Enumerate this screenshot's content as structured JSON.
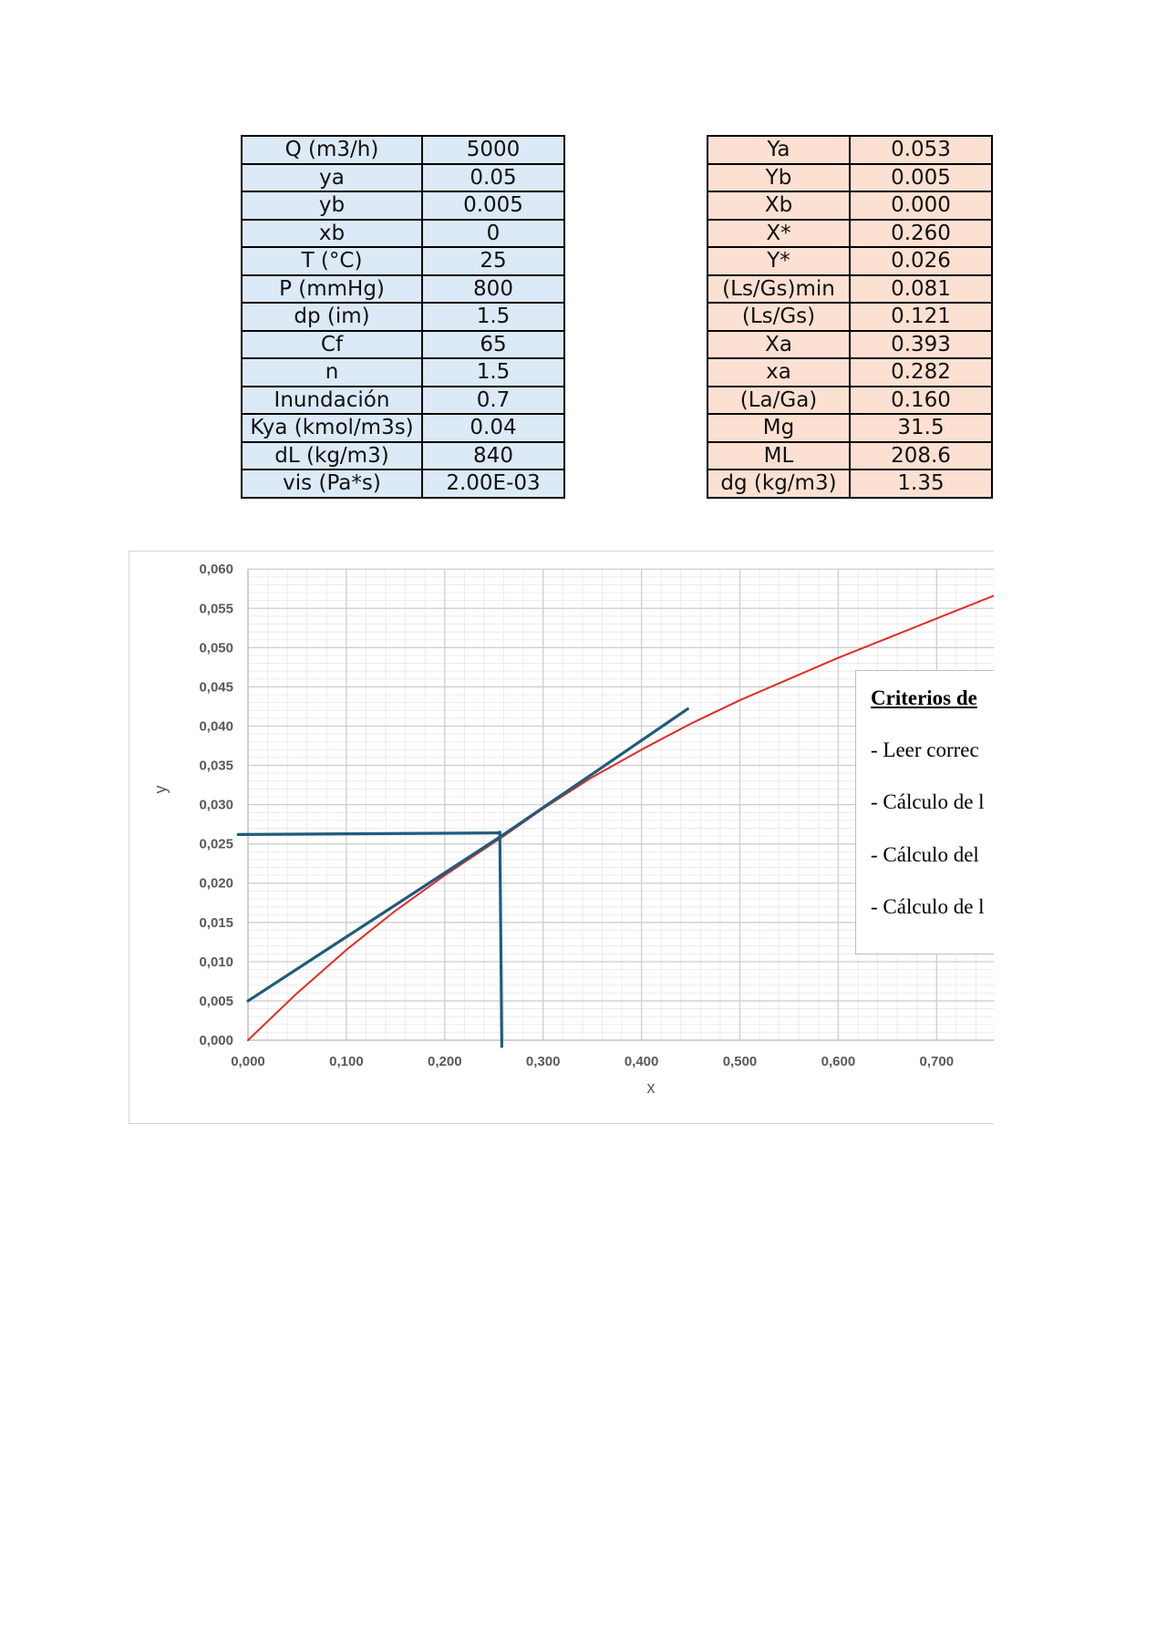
{
  "inputs_table": [
    {
      "label": "Q (m3/h)",
      "value": "5000"
    },
    {
      "label": "ya",
      "value": "0.05"
    },
    {
      "label": "yb",
      "value": "0.005"
    },
    {
      "label": "xb",
      "value": "0"
    },
    {
      "label": "T (°C)",
      "value": "25"
    },
    {
      "label": "P (mmHg)",
      "value": "800"
    },
    {
      "label": "dp (im)",
      "value": "1.5"
    },
    {
      "label": "Cf",
      "value": "65"
    },
    {
      "label": "n",
      "value": "1.5"
    },
    {
      "label": "Inundación",
      "value": "0.7"
    },
    {
      "label": "Kya (kmol/m3s)",
      "value": "0.04"
    },
    {
      "label": "dL (kg/m3)",
      "value": "840"
    },
    {
      "label": "vis (Pa*s)",
      "value": "2.00E-03"
    }
  ],
  "results_table": [
    {
      "label": "Ya",
      "value": "0.053"
    },
    {
      "label": "Yb",
      "value": "0.005"
    },
    {
      "label": "Xb",
      "value": "0.000"
    },
    {
      "label": "X*",
      "value": "0.260"
    },
    {
      "label": "Y*",
      "value": "0.026"
    },
    {
      "label": "(Ls/Gs)min",
      "value": "0.081"
    },
    {
      "label": "(Ls/Gs)",
      "value": "0.121"
    },
    {
      "label": "Xa",
      "value": "0.393"
    },
    {
      "label": "xa",
      "value": "0.282"
    },
    {
      "label": "(La/Ga)",
      "value": "0.160"
    },
    {
      "label": "Mg",
      "value": "31.5"
    },
    {
      "label": "ML",
      "value": "208.6"
    },
    {
      "label": "dg (kg/m3)",
      "value": "1.35"
    }
  ],
  "criteria_box": {
    "title": "Criterios de",
    "items": [
      "- Leer correc",
      "- Cálculo de l",
      "- Cálculo del",
      "- Cálculo de l"
    ]
  },
  "chart_data": {
    "type": "line",
    "xlabel": "x",
    "ylabel": "y",
    "xlim": [
      0,
      0.76
    ],
    "ylim": [
      0,
      0.06
    ],
    "x_ticks": [
      "0,000",
      "0,100",
      "0,200",
      "0,300",
      "0,400",
      "0,500",
      "0,600",
      "0,700"
    ],
    "y_ticks": [
      "0,000",
      "0,005",
      "0,010",
      "0,015",
      "0,020",
      "0,025",
      "0,030",
      "0,035",
      "0,040",
      "0,045",
      "0,050",
      "0,055",
      "0,060"
    ],
    "grid": true,
    "series": [
      {
        "color": "#e32b25",
        "x": [
          0,
          0.05,
          0.1,
          0.15,
          0.2,
          0.26,
          0.3,
          0.35,
          0.4,
          0.45,
          0.5,
          0.55,
          0.6,
          0.65,
          0.7,
          0.76
        ],
        "y": [
          0,
          0.006,
          0.0115,
          0.0165,
          0.021,
          0.026,
          0.0295,
          0.0335,
          0.037,
          0.0403,
          0.0433,
          0.046,
          0.0487,
          0.0512,
          0.0537,
          0.0567
        ]
      },
      {
        "color": "#1f5c7d",
        "x": [
          0,
          0.26,
          0.447
        ],
        "y": [
          0.005,
          0.0262,
          0.0422
        ]
      },
      {
        "color": "#1f5c7d",
        "x": [
          -0.01,
          0.256
        ],
        "y": [
          0.0262,
          0.0264
        ]
      },
      {
        "color": "#1f5c7d",
        "x": [
          0.256,
          0.258
        ],
        "y": [
          0.0265,
          -0.0008
        ]
      }
    ]
  }
}
